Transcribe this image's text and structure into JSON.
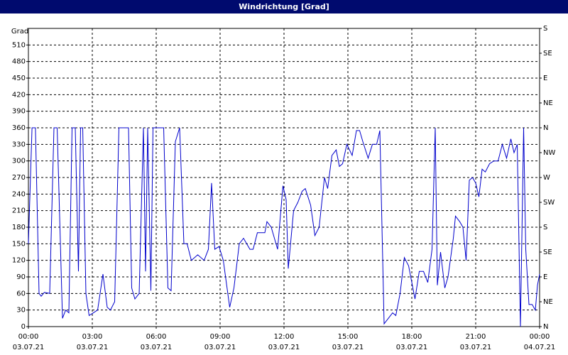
{
  "chart_data": {
    "type": "line",
    "title": "Windrichtung [Grad]",
    "ylabel": "Grad",
    "xlim": [
      0,
      24
    ],
    "ylim": [
      0,
      540
    ],
    "y2lim": [
      0,
      540
    ],
    "grid": true,
    "xticks": [
      {
        "value": 0,
        "label": "00:00",
        "sublabel": "03.07.21"
      },
      {
        "value": 3,
        "label": "03:00",
        "sublabel": "03.07.21"
      },
      {
        "value": 6,
        "label": "06:00",
        "sublabel": "03.07.21"
      },
      {
        "value": 9,
        "label": "09:00",
        "sublabel": "03.07.21"
      },
      {
        "value": 12,
        "label": "12:00",
        "sublabel": "03.07.21"
      },
      {
        "value": 15,
        "label": "15:00",
        "sublabel": "03.07.21"
      },
      {
        "value": 18,
        "label": "18:00",
        "sublabel": "03.07.21"
      },
      {
        "value": 21,
        "label": "21:00",
        "sublabel": "03.07.21"
      },
      {
        "value": 24,
        "label": "00:00",
        "sublabel": "04.07.21"
      }
    ],
    "yticks": [
      0,
      30,
      60,
      90,
      120,
      150,
      180,
      210,
      240,
      270,
      300,
      330,
      360,
      390,
      420,
      450,
      480,
      510
    ],
    "y2ticks": [
      {
        "value": 0,
        "label": "N"
      },
      {
        "value": 45,
        "label": "NE"
      },
      {
        "value": 90,
        "label": "E"
      },
      {
        "value": 135,
        "label": "SE"
      },
      {
        "value": 180,
        "label": "S"
      },
      {
        "value": 225,
        "label": "SW"
      },
      {
        "value": 270,
        "label": "W"
      },
      {
        "value": 315,
        "label": "NW"
      },
      {
        "value": 360,
        "label": "N"
      },
      {
        "value": 405,
        "label": "NE"
      },
      {
        "value": 450,
        "label": "E"
      },
      {
        "value": 495,
        "label": "SE"
      },
      {
        "value": 540,
        "label": "S"
      }
    ],
    "x": [
      0,
      0.17,
      0.33,
      0.5,
      0.6,
      0.75,
      1.0,
      1.2,
      1.35,
      1.6,
      1.75,
      1.9,
      2.05,
      2.2,
      2.35,
      2.45,
      2.55,
      2.7,
      2.85,
      3.05,
      3.25,
      3.5,
      3.7,
      3.85,
      4.05,
      4.25,
      4.5,
      4.7,
      4.85,
      5.0,
      5.2,
      5.4,
      5.5,
      5.6,
      5.75,
      5.85,
      6.1,
      6.35,
      6.55,
      6.7,
      6.9,
      7.1,
      7.3,
      7.45,
      7.65,
      7.95,
      8.25,
      8.45,
      8.6,
      8.75,
      8.95,
      9.15,
      9.45,
      9.65,
      9.9,
      10.1,
      10.4,
      10.55,
      10.75,
      11.1,
      11.2,
      11.4,
      11.7,
      11.95,
      12.1,
      12.2,
      12.45,
      12.65,
      12.85,
      13.0,
      13.25,
      13.45,
      13.65,
      13.9,
      14.05,
      14.25,
      14.45,
      14.6,
      14.75,
      14.95,
      15.2,
      15.4,
      15.55,
      15.7,
      15.95,
      16.15,
      16.35,
      16.5,
      16.7,
      16.9,
      17.1,
      17.25,
      17.45,
      17.65,
      17.85,
      18.15,
      18.35,
      18.55,
      18.75,
      18.95,
      19.1,
      19.2,
      19.35,
      19.55,
      19.7,
      19.95,
      20.05,
      20.25,
      20.4,
      20.55,
      20.7,
      20.85,
      21.0,
      21.15,
      21.3,
      21.45,
      21.65,
      21.85,
      22.05,
      22.25,
      22.45,
      22.65,
      22.8,
      22.95,
      23.1,
      23.25,
      23.35,
      23.5,
      23.65,
      23.8,
      23.9,
      24.0
    ],
    "series": [
      {
        "name": "Windrichtung",
        "color": "#0000cc",
        "values": [
          150,
          360,
          360,
          60,
          55,
          62,
          60,
          360,
          360,
          15,
          30,
          25,
          360,
          360,
          100,
          360,
          360,
          60,
          20,
          25,
          30,
          95,
          35,
          30,
          45,
          360,
          360,
          360,
          70,
          50,
          60,
          360,
          100,
          360,
          65,
          360,
          360,
          360,
          70,
          65,
          335,
          360,
          150,
          150,
          120,
          130,
          120,
          140,
          260,
          140,
          145,
          120,
          35,
          70,
          150,
          160,
          140,
          140,
          170,
          170,
          190,
          180,
          140,
          255,
          230,
          105,
          210,
          225,
          245,
          250,
          220,
          165,
          180,
          270,
          250,
          310,
          320,
          290,
          295,
          330,
          310,
          355,
          355,
          335,
          305,
          330,
          330,
          355,
          5,
          15,
          25,
          20,
          60,
          125,
          110,
          50,
          100,
          100,
          80,
          140,
          360,
          75,
          135,
          70,
          90,
          160,
          200,
          190,
          180,
          120,
          265,
          270,
          260,
          235,
          285,
          280,
          295,
          300,
          300,
          330,
          305,
          340,
          315,
          330,
          0,
          360,
          140,
          40,
          40,
          30,
          75,
          95
        ]
      }
    ]
  }
}
